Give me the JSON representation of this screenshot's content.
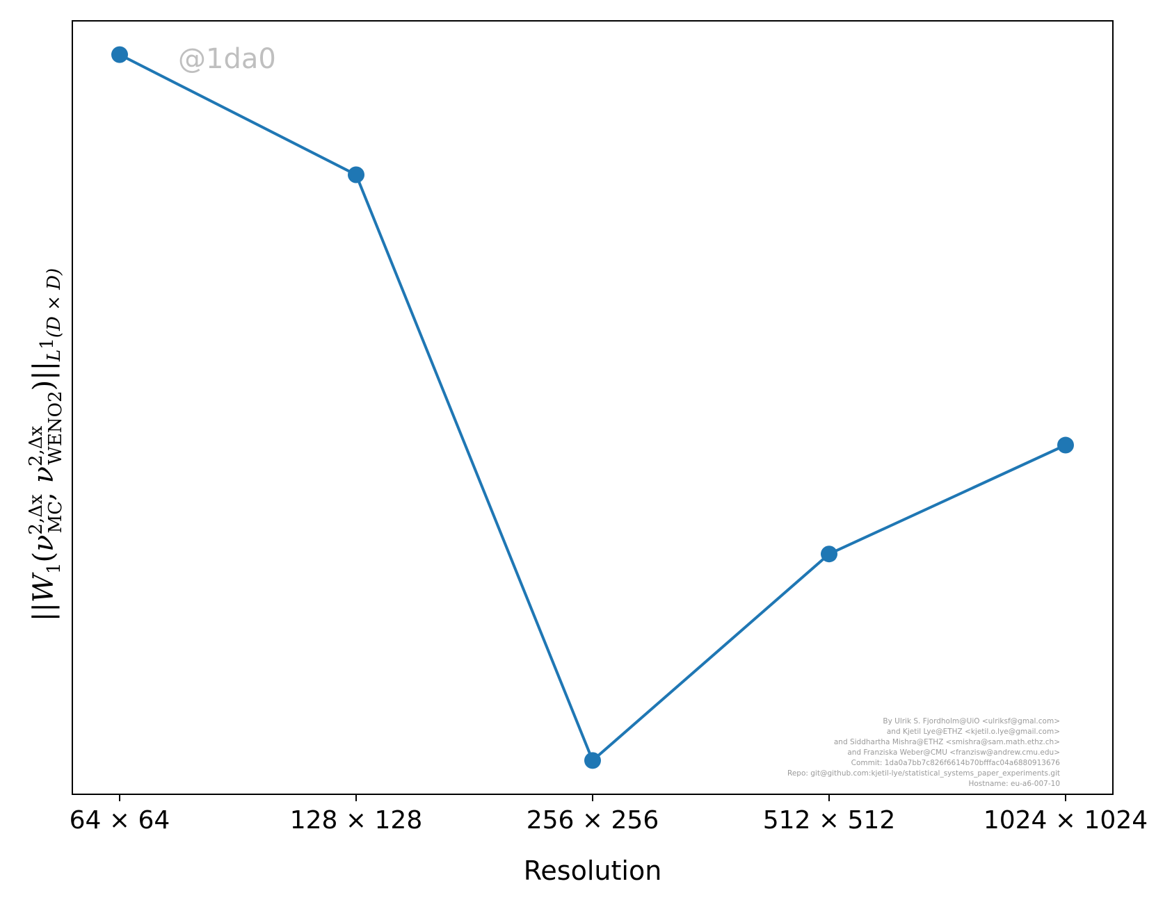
{
  "chart_data": {
    "type": "line",
    "title": "",
    "xlabel": "Resolution",
    "ylabel": "||W_1(ν_MC^{2,Δx}, ν_WENO2^{2,Δx})||_{L^1(D×D)}",
    "categories": [
      "64 × 64",
      "128 × 128",
      "256 × 256",
      "512 × 512",
      "1024 × 1024"
    ],
    "series": [
      {
        "values": [
          1.0,
          0.84,
          0.06,
          0.335,
          0.48
        ]
      }
    ],
    "ylim": [
      0.015,
      1.045
    ],
    "y_ticks_shown": false,
    "grid": false,
    "legend": "none",
    "color": "#1f77b4"
  },
  "watermark": "@1da0",
  "credits": [
    "By Ulrik S. Fjordholm@UiO <ulriksf@gmal.com>",
    "and Kjetil Lye@ETHZ <kjetil.o.lye@gmail.com>",
    "and Siddhartha Mishra@ETHZ <smishra@sam.math.ethz.ch>",
    "and Franziska Weber@CMU <franzisw@andrew.cmu.edu>",
    "Commit: 1da0a7bb7c826f6614b70bfffac04a6880913676",
    "Repo: git@github.com:kjetil-lye/statistical_systems_paper_experiments.git",
    "Hostname: eu-a6-007-10"
  ]
}
